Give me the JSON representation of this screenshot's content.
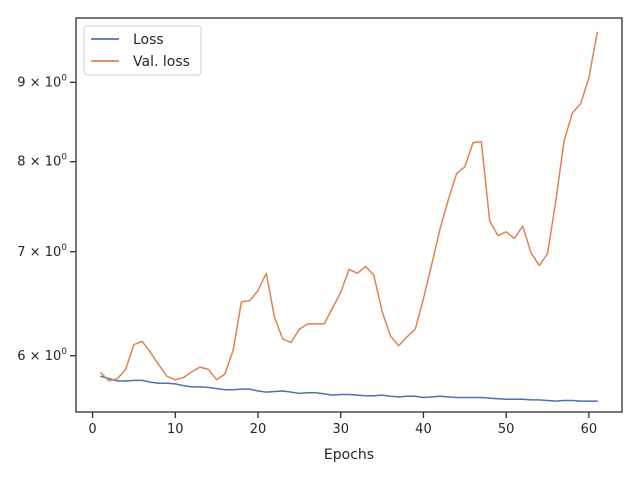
{
  "chart_data": {
    "type": "line",
    "title": "",
    "xlabel": "Epochs",
    "ylabel": "",
    "yscale": "log",
    "xlim": [
      -2,
      64
    ],
    "ylim": [
      5.52,
      9.9
    ],
    "grid": false,
    "legend_position": "top-left",
    "x_ticks": [
      0,
      10,
      20,
      30,
      40,
      50,
      60
    ],
    "x_tick_labels": [
      "0",
      "10",
      "20",
      "30",
      "40",
      "50",
      "60"
    ],
    "y_ticks": [
      6,
      7,
      8,
      9
    ],
    "y_tick_mantissas": [
      "6",
      "7",
      "8",
      "9"
    ],
    "y_tick_base": "× 10",
    "y_tick_exponent": "0",
    "x": [
      1,
      2,
      3,
      4,
      5,
      6,
      7,
      8,
      9,
      10,
      11,
      12,
      13,
      14,
      15,
      16,
      17,
      18,
      19,
      20,
      21,
      22,
      23,
      24,
      25,
      26,
      27,
      28,
      29,
      30,
      31,
      32,
      33,
      34,
      35,
      36,
      37,
      38,
      39,
      40,
      41,
      42,
      43,
      44,
      45,
      46,
      47,
      48,
      49,
      50,
      51,
      52,
      53,
      54,
      55,
      56,
      57,
      58,
      59,
      60,
      61
    ],
    "series": [
      {
        "name": "Loss",
        "color": "#4c72b0",
        "values": [
          5.82,
          5.8,
          5.78,
          5.78,
          5.785,
          5.785,
          5.77,
          5.76,
          5.76,
          5.755,
          5.74,
          5.73,
          5.73,
          5.725,
          5.715,
          5.705,
          5.705,
          5.71,
          5.71,
          5.695,
          5.685,
          5.69,
          5.695,
          5.685,
          5.675,
          5.68,
          5.68,
          5.67,
          5.66,
          5.665,
          5.665,
          5.66,
          5.655,
          5.655,
          5.66,
          5.65,
          5.645,
          5.65,
          5.65,
          5.64,
          5.645,
          5.65,
          5.645,
          5.64,
          5.64,
          5.64,
          5.64,
          5.635,
          5.63,
          5.625,
          5.625,
          5.625,
          5.62,
          5.62,
          5.615,
          5.61,
          5.615,
          5.615,
          5.61,
          5.61,
          5.61
        ]
      },
      {
        "name": "Val. loss",
        "color": "#dd8452",
        "values": [
          5.85,
          5.78,
          5.8,
          5.88,
          6.1,
          6.13,
          6.03,
          5.92,
          5.82,
          5.79,
          5.81,
          5.86,
          5.9,
          5.88,
          5.79,
          5.84,
          6.05,
          6.5,
          6.51,
          6.61,
          6.78,
          6.35,
          6.15,
          6.12,
          6.24,
          6.29,
          6.29,
          6.29,
          6.44,
          6.59,
          6.82,
          6.78,
          6.85,
          6.76,
          6.41,
          6.18,
          6.09,
          6.17,
          6.24,
          6.53,
          6.87,
          7.24,
          7.56,
          7.86,
          7.94,
          8.23,
          8.24,
          7.33,
          7.17,
          7.21,
          7.14,
          7.27,
          6.99,
          6.86,
          6.98,
          7.55,
          8.25,
          8.6,
          8.72,
          9.06,
          9.69
        ]
      }
    ]
  }
}
